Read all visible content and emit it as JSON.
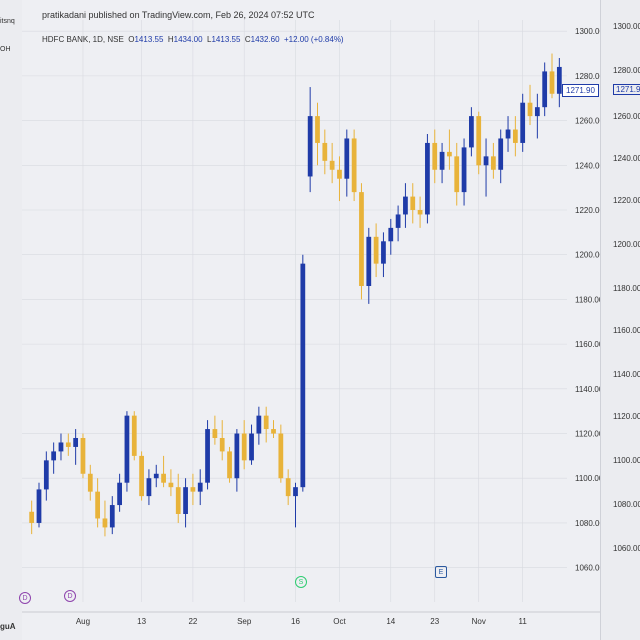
{
  "header": {
    "published": "pratikadani published on TradingView.com, Feb 26, 2024 07:52 UTC",
    "symbol": "HDFC BANK, 1D, NSE",
    "o_label": "O",
    "o_value": "1413.55",
    "h_label": "H",
    "h_value": "1434.00",
    "l_label": "L",
    "l_value": "1413.55",
    "c_label": "C",
    "c_value": "1432.60",
    "change": "+12.00 (+0.84%)"
  },
  "left_panel": {
    "top_text": "itsnq",
    "second_text": "OH",
    "bottom_text": "guA"
  },
  "price_tag": "1271.90",
  "right_panel_ticks": [
    "1300.00",
    "1280.00",
    "1271.90",
    "1260.00",
    "1240.00",
    "1220.00",
    "1200.00",
    "1180.00",
    "1160.00",
    "1140.00",
    "1120.00",
    "1100.00",
    "1080.00",
    "1060.00"
  ],
  "events": [
    {
      "letter": "D",
      "color": "#8e44ad"
    },
    {
      "letter": "D",
      "color": "#8e44ad"
    },
    {
      "letter": "S",
      "color": "#2ecc71"
    },
    {
      "letter": "E",
      "color": "#2c5aa0"
    }
  ],
  "colors": {
    "up": "#1f3ba8",
    "down": "#e8b33a",
    "bg": "#eeeff3",
    "grid": "#d8dae0"
  },
  "chart_data": {
    "type": "candlestick",
    "title": "HDFC BANK, 1D, NSE",
    "ylim": [
      1050,
      1305
    ],
    "y_ticks": [
      1060,
      1080,
      1100,
      1120,
      1140,
      1160,
      1180,
      1200,
      1220,
      1240,
      1260,
      1280,
      1300
    ],
    "y_tick_labels": [
      "1060.00",
      "1080.00",
      "1100.00",
      "1120.00",
      "1140.00",
      "1160.00",
      "1180.00",
      "1200.00",
      "1220.00",
      "1240.00",
      "1260.00",
      "1280.00",
      "1300.00"
    ],
    "x_tick_labels": [
      "Aug",
      "13",
      "22",
      "Sep",
      "16",
      "Oct",
      "14",
      "23",
      "Nov",
      "11"
    ],
    "x_tick_index": [
      7,
      15,
      22,
      29,
      36,
      42,
      49,
      55,
      61,
      67
    ],
    "candles": [
      [
        1085,
        1090,
        1075,
        1080
      ],
      [
        1080,
        1098,
        1078,
        1095
      ],
      [
        1095,
        1112,
        1090,
        1108
      ],
      [
        1108,
        1116,
        1102,
        1112
      ],
      [
        1112,
        1120,
        1108,
        1116
      ],
      [
        1116,
        1120,
        1110,
        1114
      ],
      [
        1114,
        1122,
        1106,
        1118
      ],
      [
        1118,
        1120,
        1100,
        1102
      ],
      [
        1102,
        1106,
        1090,
        1094
      ],
      [
        1094,
        1100,
        1078,
        1082
      ],
      [
        1082,
        1090,
        1074,
        1078
      ],
      [
        1078,
        1092,
        1075,
        1088
      ],
      [
        1088,
        1102,
        1085,
        1098
      ],
      [
        1098,
        1130,
        1094,
        1128
      ],
      [
        1128,
        1130,
        1108,
        1110
      ],
      [
        1110,
        1112,
        1090,
        1092
      ],
      [
        1092,
        1104,
        1088,
        1100
      ],
      [
        1100,
        1106,
        1096,
        1102
      ],
      [
        1102,
        1110,
        1096,
        1098
      ],
      [
        1098,
        1104,
        1092,
        1096
      ],
      [
        1096,
        1102,
        1080,
        1084
      ],
      [
        1084,
        1100,
        1078,
        1096
      ],
      [
        1096,
        1102,
        1088,
        1094
      ],
      [
        1094,
        1104,
        1088,
        1098
      ],
      [
        1098,
        1126,
        1095,
        1122
      ],
      [
        1122,
        1128,
        1115,
        1118
      ],
      [
        1118,
        1126,
        1108,
        1112
      ],
      [
        1112,
        1114,
        1098,
        1100
      ],
      [
        1100,
        1122,
        1094,
        1120
      ],
      [
        1120,
        1126,
        1104,
        1108
      ],
      [
        1108,
        1124,
        1106,
        1120
      ],
      [
        1120,
        1132,
        1115,
        1128
      ],
      [
        1128,
        1132,
        1116,
        1122
      ],
      [
        1122,
        1126,
        1118,
        1120
      ],
      [
        1120,
        1124,
        1098,
        1100
      ],
      [
        1100,
        1104,
        1088,
        1092
      ],
      [
        1092,
        1098,
        1078,
        1096
      ],
      [
        1096,
        1200,
        1094,
        1196
      ],
      [
        1235,
        1275,
        1228,
        1262
      ],
      [
        1262,
        1268,
        1240,
        1250
      ],
      [
        1250,
        1256,
        1236,
        1242
      ],
      [
        1242,
        1250,
        1232,
        1238
      ],
      [
        1238,
        1244,
        1224,
        1234
      ],
      [
        1234,
        1256,
        1226,
        1252
      ],
      [
        1252,
        1256,
        1224,
        1228
      ],
      [
        1228,
        1232,
        1180,
        1186
      ],
      [
        1186,
        1212,
        1178,
        1208
      ],
      [
        1208,
        1214,
        1190,
        1196
      ],
      [
        1196,
        1210,
        1190,
        1206
      ],
      [
        1206,
        1216,
        1200,
        1212
      ],
      [
        1212,
        1222,
        1206,
        1218
      ],
      [
        1218,
        1232,
        1212,
        1226
      ],
      [
        1226,
        1232,
        1214,
        1220
      ],
      [
        1220,
        1226,
        1212,
        1218
      ],
      [
        1218,
        1254,
        1214,
        1250
      ],
      [
        1250,
        1256,
        1232,
        1238
      ],
      [
        1238,
        1250,
        1232,
        1246
      ],
      [
        1246,
        1256,
        1238,
        1244
      ],
      [
        1244,
        1250,
        1222,
        1228
      ],
      [
        1228,
        1252,
        1222,
        1248
      ],
      [
        1248,
        1266,
        1244,
        1262
      ],
      [
        1262,
        1264,
        1236,
        1240
      ],
      [
        1240,
        1252,
        1226,
        1244
      ],
      [
        1244,
        1250,
        1234,
        1238
      ],
      [
        1238,
        1256,
        1232,
        1252
      ],
      [
        1252,
        1262,
        1246,
        1256
      ],
      [
        1256,
        1262,
        1244,
        1250
      ],
      [
        1250,
        1272,
        1246,
        1268
      ],
      [
        1268,
        1276,
        1258,
        1262
      ],
      [
        1262,
        1272,
        1252,
        1266
      ],
      [
        1266,
        1286,
        1262,
        1282
      ],
      [
        1282,
        1290,
        1270,
        1272
      ],
      [
        1272,
        1288,
        1266,
        1284
      ]
    ]
  }
}
